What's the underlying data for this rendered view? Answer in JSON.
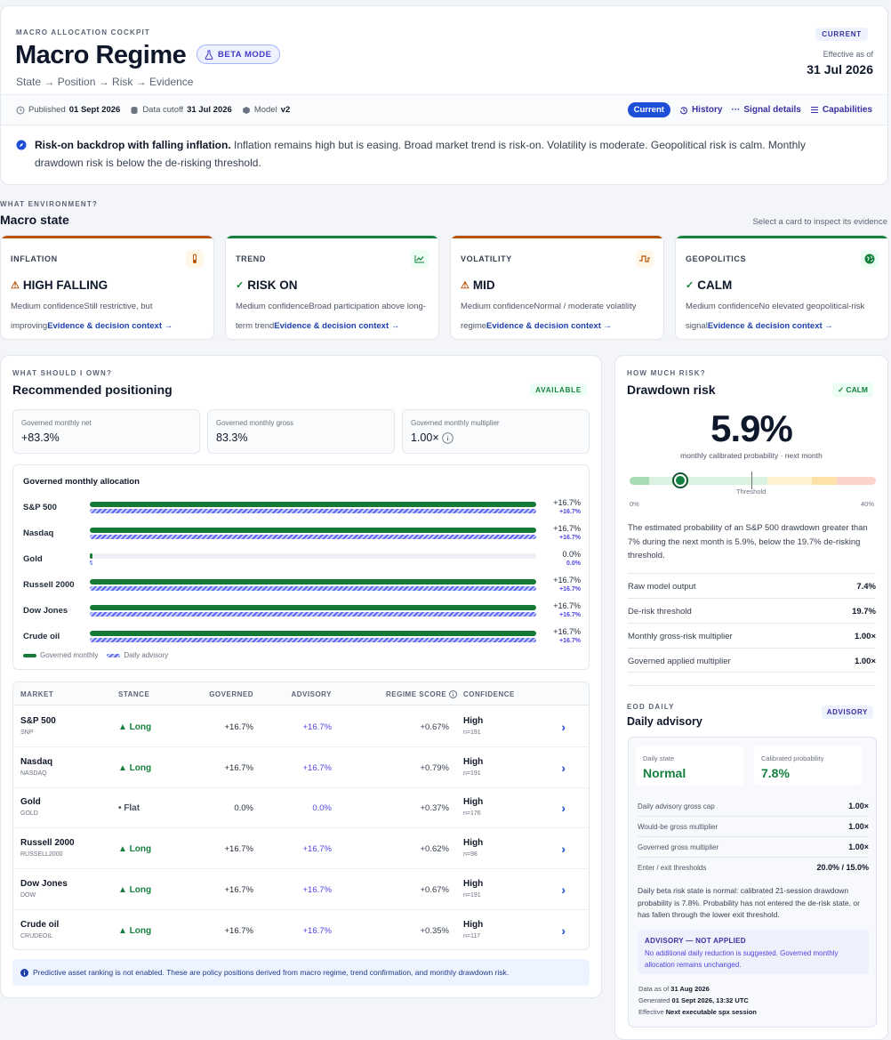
{
  "header": {
    "eyebrow": "MACRO ALLOCATION COCKPIT",
    "title": "Macro Regime",
    "beta_label": "BETA MODE",
    "subtitle": "State → Position → Risk → Evidence",
    "current_badge": "CURRENT",
    "effective_label": "Effective as of",
    "effective_date": "31 Jul 2026"
  },
  "meta": {
    "published_label": "Published",
    "published_value": "01 Sept 2026",
    "cutoff_label": "Data cutoff",
    "cutoff_value": "31 Jul 2026",
    "model_label": "Model",
    "model_value": "v2"
  },
  "nav": {
    "current": "Current",
    "history": "History",
    "signal_details": "Signal details",
    "capabilities": "Capabilities"
  },
  "summary": {
    "headline": "Risk-on backdrop with falling inflation.",
    "body": "Inflation remains high but is easing. Broad market trend is risk-on. Volatility is moderate. Geopolitical risk is calm. Monthly drawdown risk is below the de-risking threshold."
  },
  "macro_state": {
    "eyebrow": "WHAT ENVIRONMENT?",
    "title": "Macro state",
    "hint": "Select a card to inspect its evidence",
    "cards": [
      {
        "label": "INFLATION",
        "mark": "⚠",
        "value": "HIGH FALLING",
        "confidence": "Medium confidence",
        "desc": "Still restrictive, but improving",
        "link": "Evidence & decision context →",
        "color": "#b45309",
        "icon": "thermometer-icon"
      },
      {
        "label": "TREND",
        "mark": "✓",
        "value": "RISK ON",
        "confidence": "Medium confidence",
        "desc": "Broad participation above long-term trend",
        "link": "Evidence & decision context →",
        "color": "#15803d",
        "icon": "trend-chart-icon"
      },
      {
        "label": "VOLATILITY",
        "mark": "⚠",
        "value": "MID",
        "confidence": "Medium confidence",
        "desc": "Normal / moderate volatility regime",
        "link": "Evidence & decision context →",
        "color": "#b45309",
        "icon": "pulse-icon"
      },
      {
        "label": "GEOPOLITICS",
        "mark": "✓",
        "value": "CALM",
        "confidence": "Medium confidence",
        "desc": "No elevated geopolitical-risk signal",
        "link": "Evidence & decision context →",
        "color": "#15803d",
        "icon": "globe-icon"
      }
    ]
  },
  "positioning": {
    "eyebrow": "WHAT SHOULD I OWN?",
    "title": "Recommended positioning",
    "badge": "AVAILABLE",
    "stats": [
      {
        "label": "Governed monthly net",
        "value": "+83.3%"
      },
      {
        "label": "Governed monthly gross",
        "value": "83.3%"
      },
      {
        "label": "Governed monthly multiplier",
        "value": "1.00×"
      }
    ],
    "alloc_title": "Governed monthly allocation",
    "alloc_scale_max_pct": 16.7,
    "allocations": [
      {
        "name": "S&P 500",
        "governed": 16.7,
        "advisory": 16.7,
        "governed_label": "+16.7%",
        "advisory_label": "+16.7%"
      },
      {
        "name": "Nasdaq",
        "governed": 16.7,
        "advisory": 16.7,
        "governed_label": "+16.7%",
        "advisory_label": "+16.7%"
      },
      {
        "name": "Gold",
        "governed": 0,
        "advisory": 0,
        "governed_label": "0.0%",
        "advisory_label": "0.0%"
      },
      {
        "name": "Russell 2000",
        "governed": 16.7,
        "advisory": 16.7,
        "governed_label": "+16.7%",
        "advisory_label": "+16.7%"
      },
      {
        "name": "Dow Jones",
        "governed": 16.7,
        "advisory": 16.7,
        "governed_label": "+16.7%",
        "advisory_label": "+16.7%"
      },
      {
        "name": "Crude oil",
        "governed": 16.7,
        "advisory": 16.7,
        "governed_label": "+16.7%",
        "advisory_label": "+16.7%"
      }
    ],
    "legend_governed": "Governed monthly",
    "legend_advisory": "Daily advisory",
    "table_headers": [
      "MARKET",
      "STANCE",
      "GOVERNED",
      "ADVISORY",
      "REGIME SCORE",
      "CONFIDENCE"
    ],
    "rows": [
      {
        "name": "S&P 500",
        "ticker": "SNP",
        "stance_mark": "▲",
        "stance": "Long",
        "stance_color": "#15803d",
        "governed": "+16.7%",
        "advisory": "+16.7%",
        "score": "+0.67%",
        "confidence": "High",
        "n": "n=191"
      },
      {
        "name": "Nasdaq",
        "ticker": "NASDAQ",
        "stance_mark": "▲",
        "stance": "Long",
        "stance_color": "#15803d",
        "governed": "+16.7%",
        "advisory": "+16.7%",
        "score": "+0.79%",
        "confidence": "High",
        "n": "n=191"
      },
      {
        "name": "Gold",
        "ticker": "GOLD",
        "stance_mark": "•",
        "stance": "Flat",
        "stance_color": "#4b5563",
        "governed": "0.0%",
        "advisory": "0.0%",
        "score": "+0.37%",
        "confidence": "High",
        "n": "n=176"
      },
      {
        "name": "Russell 2000",
        "ticker": "RUSSELL2000",
        "stance_mark": "▲",
        "stance": "Long",
        "stance_color": "#15803d",
        "governed": "+16.7%",
        "advisory": "+16.7%",
        "score": "+0.62%",
        "confidence": "High",
        "n": "n=98"
      },
      {
        "name": "Dow Jones",
        "ticker": "DOW",
        "stance_mark": "▲",
        "stance": "Long",
        "stance_color": "#15803d",
        "governed": "+16.7%",
        "advisory": "+16.7%",
        "score": "+0.67%",
        "confidence": "High",
        "n": "n=191"
      },
      {
        "name": "Crude oil",
        "ticker": "CRUDEOIL",
        "stance_mark": "▲",
        "stance": "Long",
        "stance_color": "#15803d",
        "governed": "+16.7%",
        "advisory": "+16.7%",
        "score": "+0.35%",
        "confidence": "High",
        "n": "n=117"
      }
    ],
    "note": "Predictive asset ranking is not enabled. These are policy positions derived from macro regime, trend confirmation, and monthly drawdown risk."
  },
  "risk": {
    "eyebrow": "HOW MUCH RISK?",
    "title": "Drawdown risk",
    "badge": "✓ CALM",
    "value": "5.9%",
    "value_sub": "monthly calibrated probability · next month",
    "gauge_value_pct": 5.9,
    "gauge_threshold_pct": 19.7,
    "gauge_min_label": "0%",
    "gauge_max_label": "40%",
    "threshold_label": "Threshold",
    "description": "The estimated probability of an S&P 500 drawdown greater than 7% during the next month is 5.9%, below the 19.7% de-risking threshold.",
    "kv": [
      {
        "k": "Raw model output",
        "v": "7.4%"
      },
      {
        "k": "De-risk threshold",
        "v": "19.7%"
      },
      {
        "k": "Monthly gross-risk multiplier",
        "v": "1.00×"
      },
      {
        "k": "Governed applied multiplier",
        "v": "1.00×"
      }
    ]
  },
  "daily": {
    "eyebrow": "EOD DAILY",
    "title": "Daily advisory",
    "badge": "ADVISORY",
    "state_label": "Daily state",
    "state_value": "Normal",
    "prob_label": "Calibrated probability",
    "prob_value": "7.8%",
    "rows": [
      {
        "k": "Daily advisory gross cap",
        "v": "1.00×"
      },
      {
        "k": "Would-be gross multiplier",
        "v": "1.00×"
      },
      {
        "k": "Governed gross multiplier",
        "v": "1.00×"
      },
      {
        "k": "Enter / exit thresholds",
        "v": "20.0% / 15.0%"
      }
    ],
    "note": "Daily beta risk state is normal: calibrated 21-session drawdown probability is 7.8%. Probability has not entered the de-risk state, or has fallen through the lower exit threshold.",
    "not_applied_title": "ADVISORY — NOT APPLIED",
    "not_applied_desc": "No additional daily reduction is suggested. Governed monthly allocation remains unchanged.",
    "data_as_of_label": "Data as of",
    "data_as_of": "31 Aug 2026",
    "generated_label": "Generated",
    "generated": "01 Sept 2026, 13:32 UTC",
    "effective_label": "Effective",
    "effective": "Next executable spx session"
  }
}
